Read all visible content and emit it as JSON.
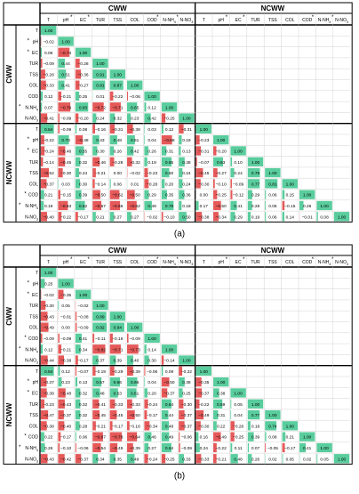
{
  "figure": {
    "panels": [
      {
        "caption": "(a)"
      },
      {
        "caption": "(b)"
      }
    ],
    "colors": {
      "positive": "#3cc48c",
      "negative": "#e23c3c",
      "grid": "#c8c8c8",
      "frame": "#000000"
    }
  },
  "chart_data": [
    {
      "type": "heatmap",
      "title": "",
      "group_labels": [
        "CWW",
        "NCWW"
      ],
      "row_labels": [
        "T",
        "pH",
        "EC",
        "TUR",
        "TSS",
        "COL",
        "COD",
        "N-NH4",
        "N-NO3",
        "T",
        "pH",
        "EC",
        "TUR",
        "TSS",
        "COL",
        "COD",
        "N-NH4",
        "N-NO3"
      ],
      "row_marks": [
        "",
        "*",
        "*",
        "",
        "",
        "",
        "",
        "*",
        "",
        "",
        "*",
        "*",
        "",
        "",
        "",
        "*",
        "*",
        ""
      ],
      "column_labels": [
        "T",
        "pH",
        "EC",
        "TUR",
        "TSS",
        "COL",
        "COD",
        "N-NH4",
        "N-NO3",
        "T",
        "pH",
        "EC",
        "TUR",
        "TSS",
        "COL",
        "COD",
        "N-NH4",
        "N-NO3"
      ],
      "column_marks": [
        "",
        "*",
        "*",
        "",
        "",
        "",
        "*",
        "*",
        "",
        "",
        "*",
        "*",
        "",
        "",
        "",
        "*",
        "*",
        ""
      ],
      "values": [
        [
          1.0
        ],
        [
          -0.02,
          1.0
        ],
        [
          0.06,
          -0.74,
          1.0
        ],
        [
          -0.09,
          0.44,
          -0.28,
          1.0
        ],
        [
          -0.28,
          0.51,
          -0.36,
          0.91,
          1.0
        ],
        [
          -0.33,
          0.41,
          -0.27,
          0.81,
          0.87,
          1.0
        ],
        [
          0.12,
          -0.21,
          0.25,
          0.01,
          -0.22,
          -0.06,
          1.0
        ],
        [
          0.07,
          -0.79,
          0.83,
          -0.72,
          -0.71,
          0.65,
          0.12,
          1.0
        ],
        [
          -0.41,
          -0.09,
          -0.2,
          0.24,
          0.32,
          0.23,
          0.42,
          -0.25,
          1.0
        ],
        [
          0.84,
          -0.09,
          0.08,
          -0.16,
          -0.31,
          -0.38,
          0.03,
          0.12,
          -0.31,
          1.0
        ],
        [
          -0.22,
          0.7,
          -0.48,
          0.43,
          0.48,
          0.51,
          0.04,
          -0.68,
          0.19,
          -0.23,
          1.0
        ],
        [
          -0.24,
          -0.46,
          0.55,
          0.3,
          0.26,
          0.42,
          0.26,
          0.31,
          0.13,
          -0.31,
          -0.2,
          1.0
        ],
        [
          -0.14,
          -0.45,
          0.32,
          -0.46,
          -0.28,
          -0.32,
          0.19,
          0.65,
          0.38,
          -0.07,
          0.63,
          0.1,
          1.0
        ],
        [
          -0.52,
          -0.3,
          0.24,
          -0.21,
          0.0,
          -0.02,
          -0.23,
          0.5,
          0.24,
          -0.45,
          -0.27,
          0.24,
          0.79,
          1.0
        ],
        [
          -0.37,
          0.03,
          0.3,
          -0.14,
          0.06,
          0.01,
          -0.28,
          0.2,
          0.24,
          -0.3,
          -0.1,
          -0.09,
          0.77,
          0.81,
          1.0
        ],
        [
          0.21,
          -0.15,
          0.39,
          -0.5,
          -0.62,
          -0.5,
          0.29,
          0.35,
          0.36,
          0.0,
          -0.25,
          -0.12,
          0.29,
          0.06,
          0.15,
          1.0
        ],
        [
          0.19,
          -0.63,
          0.62,
          -0.57,
          -0.66,
          -0.62,
          0.49,
          0.78,
          0.18,
          0.17,
          -0.5,
          0.41,
          0.28,
          0.05,
          -0.15,
          0.26,
          1.0
        ],
        [
          -0.4,
          -0.22,
          -0.17,
          0.21,
          0.27,
          0.27,
          -0.02,
          -0.1,
          0.5,
          -0.38,
          -0.34,
          0.29,
          0.19,
          0.06,
          0.14,
          -0.01,
          0.08,
          1.0
        ]
      ],
      "vmin": -1,
      "vmax": 1
    },
    {
      "type": "heatmap",
      "title": "",
      "group_labels": [
        "CWW",
        "NCWW"
      ],
      "row_labels": [
        "T",
        "pH",
        "EC",
        "TUR",
        "TSS",
        "COL",
        "COD",
        "N-NH4",
        "N-NO3",
        "T",
        "pH",
        "EC",
        "TUR",
        "TSS",
        "COL",
        "COD",
        "N-NH4",
        "N-NO3"
      ],
      "row_marks": [
        "",
        "*",
        "*",
        "",
        "",
        "",
        "*",
        "*",
        "",
        "",
        "*",
        "*",
        "",
        "",
        "",
        "*",
        "*",
        ""
      ],
      "column_labels": [
        "T",
        "pH",
        "EC",
        "TUR",
        "TSS",
        "COL",
        "COD",
        "N-NH4",
        "N-NO3",
        "T",
        "pH",
        "EC",
        "TUR",
        "TSS",
        "COL",
        "COD",
        "N-NH4",
        "N-NO3"
      ],
      "column_marks": [
        "",
        "*",
        "*",
        "",
        "",
        "",
        "*",
        "*",
        "",
        "",
        "*",
        "*",
        "",
        "",
        "",
        "*",
        "*",
        ""
      ],
      "values": [
        [
          1.0
        ],
        [
          0.25,
          1.0
        ],
        [
          -0.02,
          -0.35,
          1.0
        ],
        [
          -0.3,
          0.05,
          -0.02,
          1.0
        ],
        [
          -0.43,
          -0.01,
          -0.08,
          0.89,
          1.0
        ],
        [
          -0.49,
          0.0,
          -0.09,
          0.92,
          0.94,
          1.0
        ],
        [
          -0.09,
          -0.09,
          0.41,
          -0.11,
          -0.19,
          -0.09,
          1.0
        ],
        [
          0.12,
          -0.21,
          0.34,
          -0.82,
          -0.71,
          -0.73,
          0.14,
          1.0
        ],
        [
          -0.44,
          -0.38,
          -0.17,
          0.37,
          0.39,
          0.4,
          0.3,
          -0.14,
          1.0
        ],
        [
          0.84,
          0.12,
          -0.07,
          -0.19,
          -0.29,
          -0.39,
          -0.06,
          0.09,
          -0.22,
          1.0
        ],
        [
          -0.37,
          0.23,
          0.13,
          0.57,
          0.66,
          0.66,
          0.04,
          -0.5,
          0.38,
          -0.35,
          1.0
        ],
        [
          -0.38,
          -0.48,
          0.32,
          0.48,
          0.53,
          0.61,
          0.2,
          -0.37,
          0.25,
          -0.37,
          0.38,
          1.0
        ],
        [
          -0.23,
          -0.43,
          0.32,
          -0.41,
          -0.33,
          -0.33,
          -0.24,
          0.64,
          -0.3,
          -0.22,
          0.59,
          0.05,
          1.0
        ],
        [
          -0.47,
          -0.37,
          0.32,
          -0.45,
          -0.45,
          -0.5,
          -0.17,
          0.44,
          -0.37,
          -0.49,
          0.31,
          0.04,
          0.77,
          1.0
        ],
        [
          -0.38,
          -0.4,
          0.28,
          -0.21,
          -0.17,
          -0.16,
          -0.34,
          0.48,
          -0.37,
          -0.3,
          0.22,
          -0.26,
          0.18,
          0.74,
          1.0
        ],
        [
          0.22,
          -0.17,
          0.06,
          -0.67,
          -0.78,
          -0.64,
          0.46,
          0.49,
          -0.06,
          0.16,
          -0.49,
          -0.25,
          0.39,
          0.08,
          0.21,
          1.0
        ],
        [
          0.26,
          -0.1,
          -0.06,
          -0.54,
          -0.49,
          -0.39,
          0.27,
          0.64,
          -0.09,
          0.24,
          -0.22,
          0.11,
          0.07,
          -0.05,
          -0.17,
          0.41,
          1.0
        ],
        [
          -0.43,
          -0.42,
          -0.37,
          0.34,
          0.35,
          0.49,
          -0.24,
          -0.25,
          0.33,
          -0.33,
          -0.21,
          0.48,
          0.26,
          0.02,
          0.05,
          0.02,
          0.05,
          1.0
        ]
      ],
      "vmin": -1,
      "vmax": 1
    }
  ]
}
